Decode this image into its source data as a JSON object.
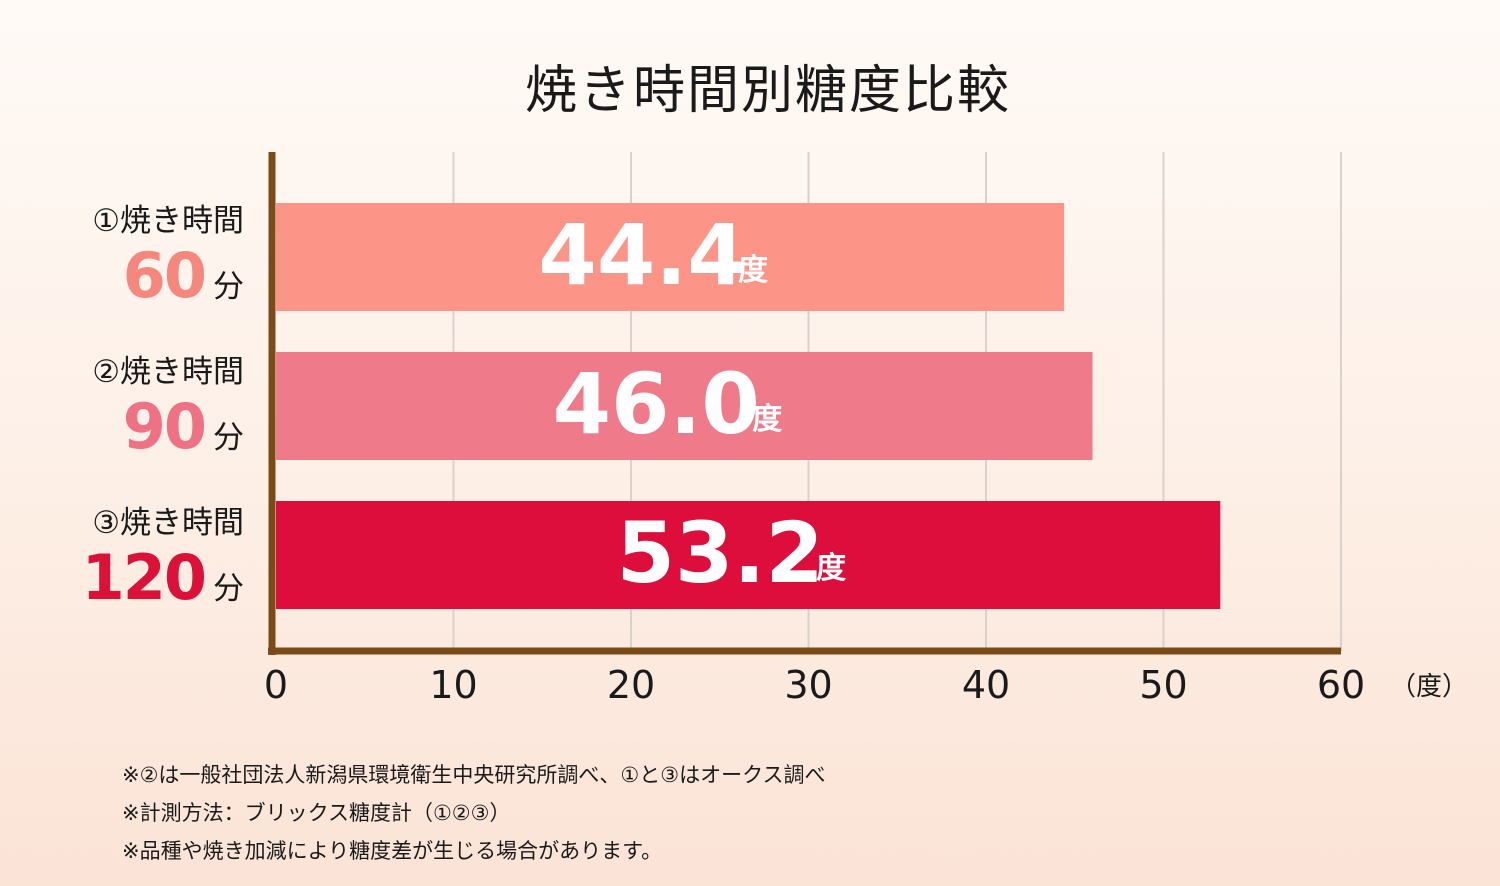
{
  "title": "焼き時間別糖度比較",
  "chart_data": {
    "type": "bar",
    "orientation": "horizontal",
    "title": "焼き時間別糖度比較",
    "categories": [
      "①焼き時間 60分",
      "②焼き時間 90分",
      "③焼き時間 120分"
    ],
    "values": [
      44.4,
      46.0,
      53.2
    ],
    "value_labels": [
      "44.4",
      "46.0",
      "53.2"
    ],
    "value_unit": "度",
    "xlim": [
      0,
      60
    ],
    "xticks": [
      0,
      10,
      20,
      30,
      40,
      50,
      60
    ],
    "xlabel": "（度）",
    "grid": true,
    "bar_colors": [
      "#fd9488",
      "#ef7b8a",
      "#dd0d3c"
    ]
  },
  "rows": [
    {
      "label": "①焼き時間",
      "minutes": "60",
      "unit": "分",
      "color": "#f6877c"
    },
    {
      "label": "②焼き時間",
      "minutes": "90",
      "unit": "分",
      "color": "#ee7284"
    },
    {
      "label": "③焼き時間",
      "minutes": "120",
      "unit": "分",
      "color": "#db1138"
    }
  ],
  "notes": [
    "※②は一般社団法人新潟県環境衛生中央研究所調べ、①と③はオークス調べ",
    "※計測方法：ブリックス糖度計（①②③）",
    "※品種や焼き加減により糖度差が生じる場合があります。"
  ]
}
